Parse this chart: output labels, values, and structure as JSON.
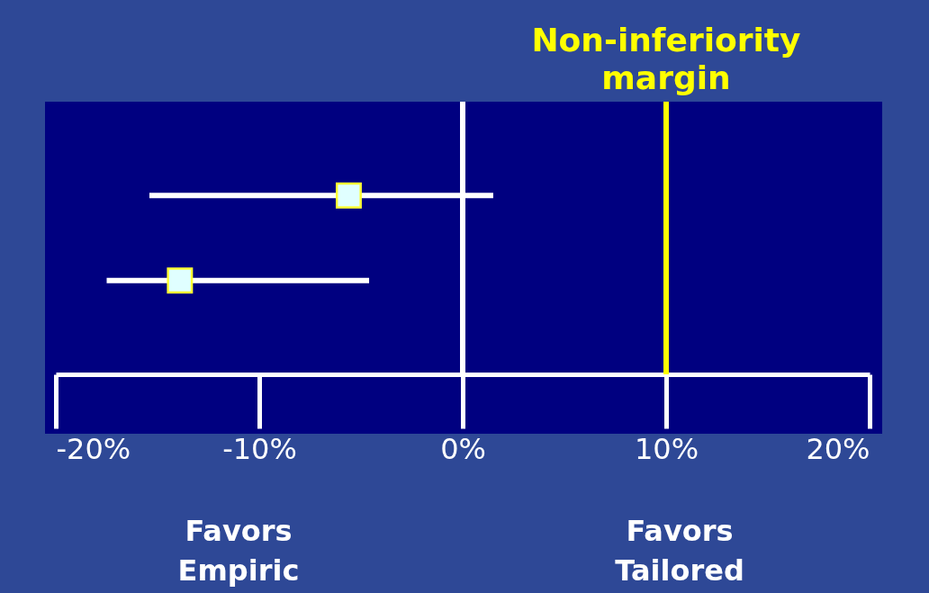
{
  "chart_data": {
    "type": "scatter",
    "orientation": "horizontal",
    "categories": [
      null,
      null
    ],
    "values": [
      -5.6,
      -13.9
    ],
    "color": "#e0ffff",
    "errors": [
      [
        -15.4,
        1.5
      ],
      [
        -17.5,
        -4.6
      ]
    ],
    "xlim": [
      -20,
      20
    ],
    "xticks": [
      {
        "value": -20,
        "label": "-20%"
      },
      {
        "value": -10,
        "label": "-10%"
      },
      {
        "value": 0,
        "label": "0%"
      },
      {
        "value": 10,
        "label": "10%"
      },
      {
        "value": 20,
        "label": "20%"
      }
    ],
    "ref_lines": [
      {
        "axis": "x",
        "value": 0,
        "color": "#ffffff"
      },
      {
        "axis": "x",
        "value": 10,
        "label": "Non-inferiority margin",
        "color": "#ffff00"
      }
    ],
    "annotations": [
      "Favors Empiric",
      "Favors Tailored"
    ],
    "marker": "square",
    "grid": false,
    "legend": false
  }
}
